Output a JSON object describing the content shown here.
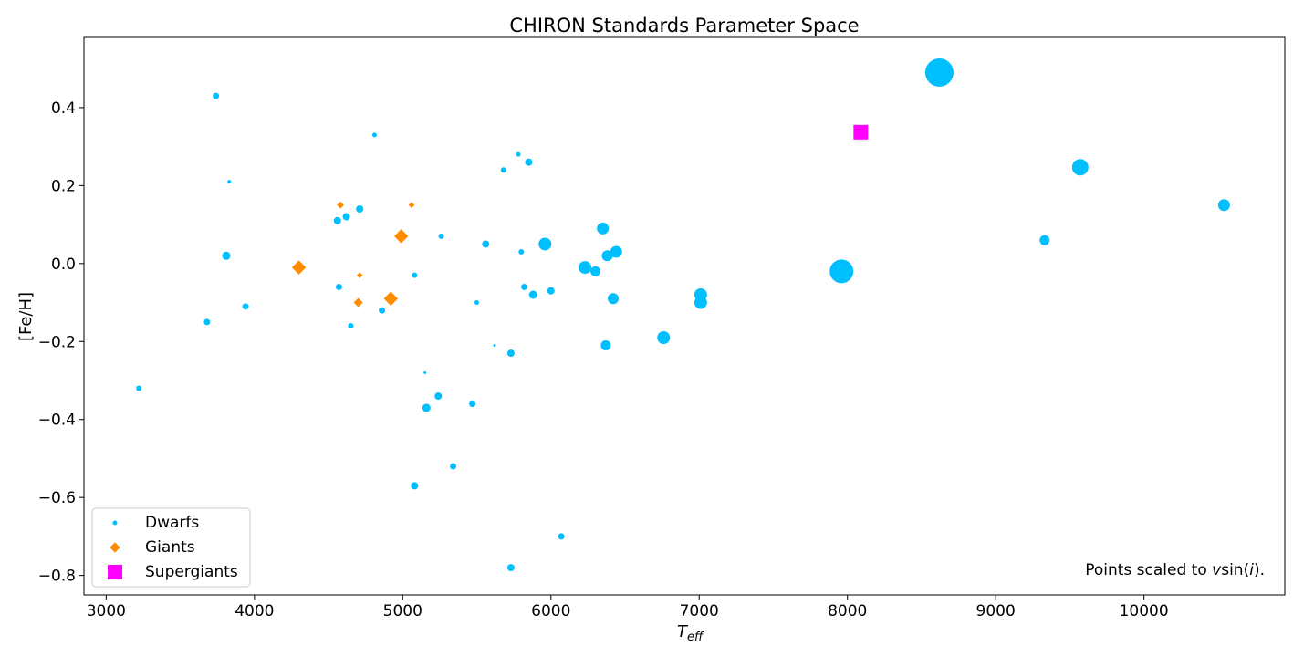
{
  "chart_data": {
    "type": "scatter",
    "title": "CHIRON Standards Parameter Space",
    "xlabel_main": "T",
    "xlabel_sub": "eff",
    "ylabel": "[Fe/H]",
    "xlim": [
      2850,
      10950
    ],
    "ylim": [
      -0.85,
      0.58
    ],
    "xticks": [
      3000,
      4000,
      5000,
      6000,
      7000,
      8000,
      9000,
      10000
    ],
    "xtick_labels": [
      "3000",
      "4000",
      "5000",
      "6000",
      "7000",
      "8000",
      "9000",
      "10000"
    ],
    "yticks": [
      -0.8,
      -0.6,
      -0.4,
      -0.2,
      0.0,
      0.2,
      0.4
    ],
    "ytick_labels": [
      "−0.8",
      "−0.6",
      "−0.4",
      "−0.2",
      "0.0",
      "0.2",
      "0.4"
    ],
    "grid": false,
    "legend_placement": "lower-left",
    "annotation": {
      "prefix": "Points scaled to ",
      "v": "v",
      "sin": "sin(",
      "i": "i",
      "suffix": ")."
    },
    "series": [
      {
        "name": "Dwarfs",
        "marker": "circle",
        "color": "#00bfff",
        "points": [
          {
            "x": 3220,
            "y": -0.32,
            "s": 3
          },
          {
            "x": 3680,
            "y": -0.15,
            "s": 3.5
          },
          {
            "x": 3740,
            "y": 0.43,
            "s": 3.5
          },
          {
            "x": 3810,
            "y": 0.02,
            "s": 4.5
          },
          {
            "x": 3830,
            "y": 0.21,
            "s": 2
          },
          {
            "x": 3940,
            "y": -0.11,
            "s": 3.5
          },
          {
            "x": 4560,
            "y": 0.11,
            "s": 4
          },
          {
            "x": 4570,
            "y": -0.06,
            "s": 3.5
          },
          {
            "x": 4620,
            "y": 0.12,
            "s": 4
          },
          {
            "x": 4650,
            "y": -0.16,
            "s": 3
          },
          {
            "x": 4710,
            "y": 0.14,
            "s": 4
          },
          {
            "x": 4810,
            "y": 0.33,
            "s": 2.5
          },
          {
            "x": 4860,
            "y": -0.12,
            "s": 3.5
          },
          {
            "x": 5080,
            "y": -0.03,
            "s": 3
          },
          {
            "x": 5080,
            "y": -0.57,
            "s": 4
          },
          {
            "x": 5150,
            "y": -0.28,
            "s": 1.5
          },
          {
            "x": 5160,
            "y": -0.37,
            "s": 4.5
          },
          {
            "x": 5240,
            "y": -0.34,
            "s": 4
          },
          {
            "x": 5260,
            "y": 0.07,
            "s": 3
          },
          {
            "x": 5340,
            "y": -0.52,
            "s": 3.5
          },
          {
            "x": 5470,
            "y": -0.36,
            "s": 3.5
          },
          {
            "x": 5500,
            "y": -0.1,
            "s": 2.5
          },
          {
            "x": 5560,
            "y": 0.05,
            "s": 4
          },
          {
            "x": 5620,
            "y": -0.21,
            "s": 1.5
          },
          {
            "x": 5680,
            "y": 0.24,
            "s": 3
          },
          {
            "x": 5730,
            "y": -0.23,
            "s": 4
          },
          {
            "x": 5730,
            "y": -0.78,
            "s": 4
          },
          {
            "x": 5780,
            "y": 0.28,
            "s": 2.5
          },
          {
            "x": 5800,
            "y": 0.03,
            "s": 3
          },
          {
            "x": 5820,
            "y": -0.06,
            "s": 3.5
          },
          {
            "x": 5850,
            "y": 0.26,
            "s": 4
          },
          {
            "x": 5880,
            "y": -0.08,
            "s": 4.5
          },
          {
            "x": 5960,
            "y": 0.05,
            "s": 7
          },
          {
            "x": 6000,
            "y": -0.07,
            "s": 4
          },
          {
            "x": 6070,
            "y": -0.7,
            "s": 3.5
          },
          {
            "x": 6230,
            "y": -0.01,
            "s": 7
          },
          {
            "x": 6300,
            "y": -0.02,
            "s": 5.5
          },
          {
            "x": 6350,
            "y": 0.09,
            "s": 6.5
          },
          {
            "x": 6370,
            "y": -0.21,
            "s": 5.5
          },
          {
            "x": 6380,
            "y": 0.02,
            "s": 6
          },
          {
            "x": 6420,
            "y": -0.09,
            "s": 6
          },
          {
            "x": 6440,
            "y": 0.03,
            "s": 6.5
          },
          {
            "x": 6760,
            "y": -0.19,
            "s": 7
          },
          {
            "x": 7010,
            "y": -0.08,
            "s": 7
          },
          {
            "x": 7010,
            "y": -0.1,
            "s": 7
          },
          {
            "x": 7960,
            "y": -0.02,
            "s": 13
          },
          {
            "x": 8620,
            "y": 0.49,
            "s": 15.5
          },
          {
            "x": 9330,
            "y": 0.06,
            "s": 5.5
          },
          {
            "x": 9570,
            "y": 0.247,
            "s": 9
          },
          {
            "x": 10540,
            "y": 0.15,
            "s": 6.5
          }
        ]
      },
      {
        "name": "Giants",
        "marker": "diamond",
        "color": "#ff8c00",
        "points": [
          {
            "x": 4300,
            "y": -0.01,
            "s": 7
          },
          {
            "x": 4580,
            "y": 0.15,
            "s": 3.5
          },
          {
            "x": 4700,
            "y": -0.1,
            "s": 4.5
          },
          {
            "x": 4710,
            "y": -0.03,
            "s": 3
          },
          {
            "x": 4920,
            "y": -0.09,
            "s": 7
          },
          {
            "x": 4990,
            "y": 0.07,
            "s": 7
          },
          {
            "x": 5060,
            "y": 0.15,
            "s": 3
          }
        ]
      },
      {
        "name": "Supergiants",
        "marker": "square",
        "color": "#ff00ff",
        "points": [
          {
            "x": 8090,
            "y": 0.337,
            "s": 8
          }
        ]
      }
    ]
  }
}
